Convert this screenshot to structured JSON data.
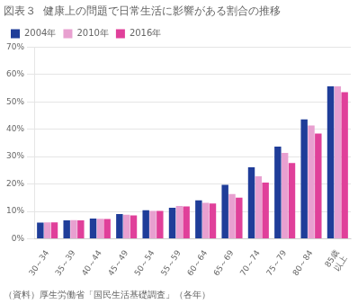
{
  "chart_data": {
    "type": "bar",
    "title": "図表３  健康上の問題で日常生活に影響がある割合の推移",
    "caption": "（資料）厚生労働省「国民生活基礎調査」（各年）",
    "categories": [
      "30～34",
      "35～39",
      "40～44",
      "45～49",
      "50～54",
      "55～59",
      "60～64",
      "65～69",
      "70～74",
      "75～79",
      "80～84",
      "85歳\n以上"
    ],
    "series": [
      {
        "name": "2004年",
        "color": "#1f3d99",
        "values": [
          0.059,
          0.067,
          0.074,
          0.09,
          0.104,
          0.113,
          0.14,
          0.197,
          0.261,
          0.337,
          0.436,
          0.557
        ]
      },
      {
        "name": "2010年",
        "color": "#e8a0d0",
        "values": [
          0.06,
          0.068,
          0.073,
          0.088,
          0.102,
          0.12,
          0.131,
          0.163,
          0.228,
          0.314,
          0.414,
          0.557
        ]
      },
      {
        "name": "2016年",
        "color": "#e0409a",
        "values": [
          0.06,
          0.067,
          0.072,
          0.085,
          0.102,
          0.118,
          0.129,
          0.15,
          0.205,
          0.277,
          0.384,
          0.535
        ]
      }
    ],
    "ylim": [
      0,
      0.7
    ],
    "yticks": [
      {
        "value": 0.0,
        "label": "0%"
      },
      {
        "value": 0.1,
        "label": "10%"
      },
      {
        "value": 0.2,
        "label": "20%"
      },
      {
        "value": 0.3,
        "label": "30%"
      },
      {
        "value": 0.4,
        "label": "40%"
      },
      {
        "value": 0.5,
        "label": "50%"
      },
      {
        "value": 0.6,
        "label": "60%"
      },
      {
        "value": 0.7,
        "label": "70%"
      }
    ],
    "grid": true,
    "legend": "upper left"
  }
}
